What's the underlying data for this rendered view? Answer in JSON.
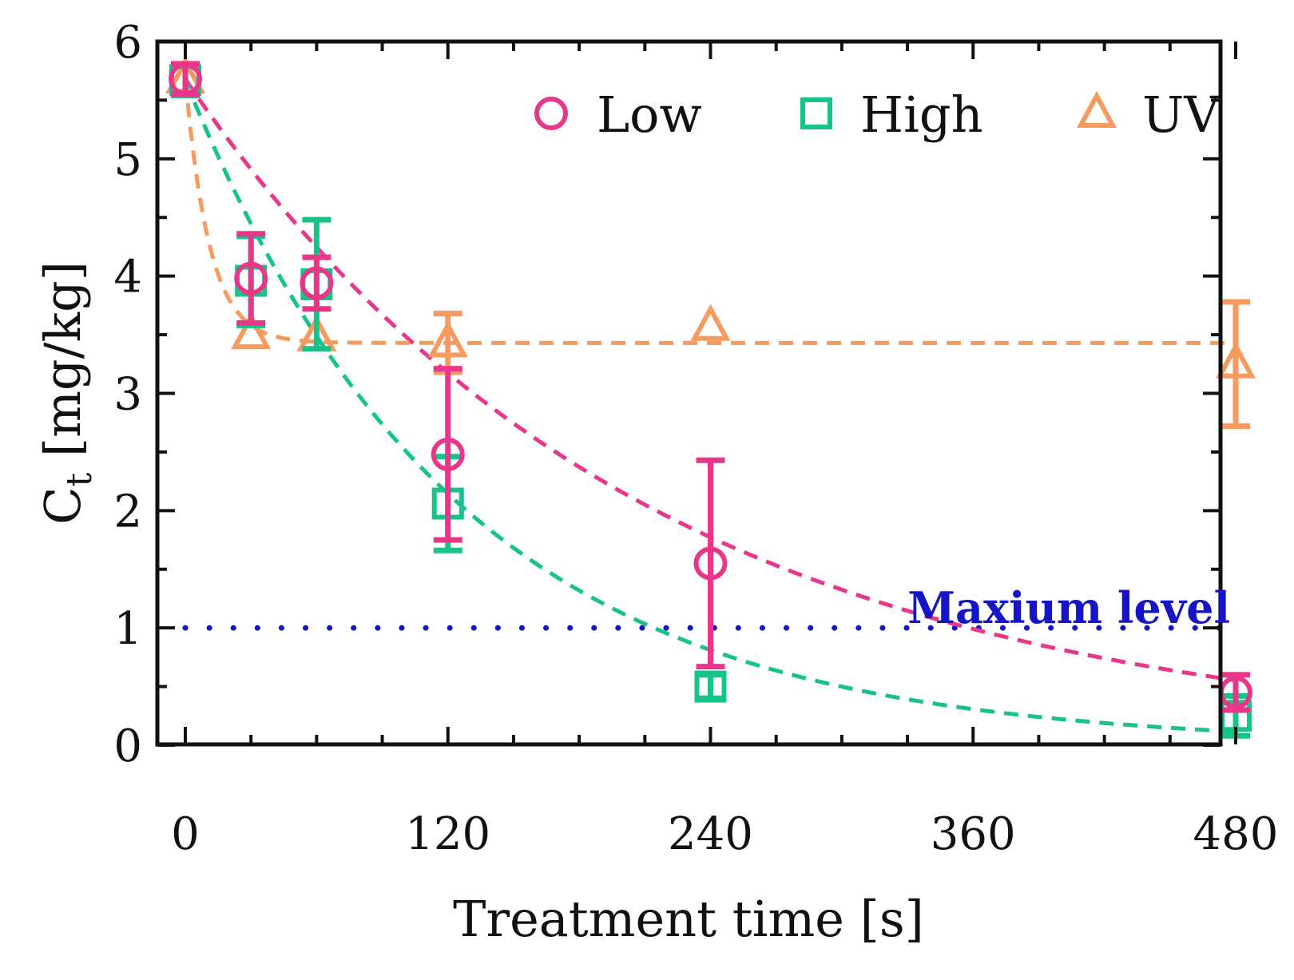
{
  "chart_data": {
    "type": "scatter",
    "title": "",
    "xlabel": "Treatment time [s]",
    "ylabel_main": "C",
    "ylabel_sub": "t",
    "ylabel_unit": " [mg/kg]",
    "xlim": [
      -8,
      490
    ],
    "ylim": [
      0,
      6
    ],
    "xticks": [
      0,
      120,
      240,
      360,
      480
    ],
    "yticks": [
      0,
      1,
      2,
      3,
      4,
      5,
      6
    ],
    "grid": false,
    "legend_position": "top-right",
    "series": [
      {
        "name": "Low",
        "marker": "circle",
        "color": "#e8378a",
        "points": [
          {
            "x": 0,
            "y": 5.68,
            "err": 0.13
          },
          {
            "x": 30,
            "y": 3.98,
            "err": 0.38
          },
          {
            "x": 60,
            "y": 3.94,
            "err": 0.22
          },
          {
            "x": 120,
            "y": 2.48,
            "err": 0.73
          },
          {
            "x": 240,
            "y": 1.55,
            "err": 0.88
          },
          {
            "x": 480,
            "y": 0.45,
            "err": 0.15
          }
        ],
        "fit": {
          "form": "exponential-decay",
          "c0": 5.68,
          "k": 0.00485
        }
      },
      {
        "name": "High",
        "marker": "square",
        "color": "#17c389",
        "points": [
          {
            "x": 0,
            "y": 5.67,
            "err": 0.13
          },
          {
            "x": 30,
            "y": 3.96,
            "err": 0.38
          },
          {
            "x": 60,
            "y": 3.93,
            "err": 0.55
          },
          {
            "x": 120,
            "y": 2.06,
            "err": 0.4
          },
          {
            "x": 240,
            "y": 0.5,
            "err": 0.1
          },
          {
            "x": 480,
            "y": 0.25,
            "err": 0.17
          }
        ],
        "fit": {
          "form": "exponential-decay",
          "c0": 5.67,
          "k": 0.0081
        }
      },
      {
        "name": "UV",
        "marker": "triangle",
        "color": "#f69a5f",
        "points": [
          {
            "x": 0,
            "y": 5.68,
            "err": 0.0
          },
          {
            "x": 30,
            "y": 3.5,
            "err": 0.0
          },
          {
            "x": 60,
            "y": 3.48,
            "err": 0.0
          },
          {
            "x": 120,
            "y": 3.43,
            "err": 0.25
          },
          {
            "x": 240,
            "y": 3.57,
            "err": 0.0
          },
          {
            "x": 480,
            "y": 3.25,
            "err": 0.53
          }
        ],
        "fit": {
          "form": "decay-to-plateau",
          "c0": 5.68,
          "plateau": 3.43,
          "k": 0.09
        }
      }
    ],
    "reference_line": {
      "label": "Maxium level",
      "y": 1,
      "color": "#1414c8"
    }
  }
}
